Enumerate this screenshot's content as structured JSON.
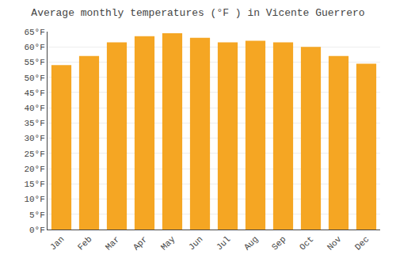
{
  "chart_data": {
    "type": "bar",
    "title": "Average monthly temperatures (°F ) in Vicente Guerrero",
    "categories": [
      "Jan",
      "Feb",
      "Mar",
      "Apr",
      "May",
      "Jun",
      "Jul",
      "Aug",
      "Sep",
      "Oct",
      "Nov",
      "Dec"
    ],
    "values": [
      54,
      57,
      61.5,
      63.5,
      64.5,
      63,
      61.5,
      62,
      61.5,
      60,
      57,
      54.5
    ],
    "color": "#F5A623",
    "ylim": [
      0,
      65
    ],
    "yticks": [
      {
        "value": 0,
        "label": "0°F"
      },
      {
        "value": 5,
        "label": "5°F"
      },
      {
        "value": 10,
        "label": "10°F"
      },
      {
        "value": 15,
        "label": "15°F"
      },
      {
        "value": 20,
        "label": "20°F"
      },
      {
        "value": 25,
        "label": "25°F"
      },
      {
        "value": 30,
        "label": "30°F"
      },
      {
        "value": 35,
        "label": "35°F"
      },
      {
        "value": 40,
        "label": "40°F"
      },
      {
        "value": 45,
        "label": "45°F"
      },
      {
        "value": 50,
        "label": "50°F"
      },
      {
        "value": 55,
        "label": "55°F"
      },
      {
        "value": 60,
        "label": "60°F"
      },
      {
        "value": 65,
        "label": "65°F"
      }
    ],
    "grid": true
  }
}
